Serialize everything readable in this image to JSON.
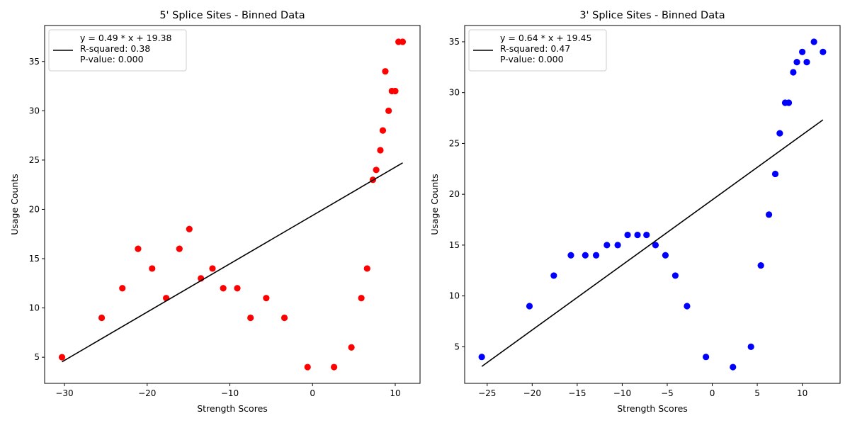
{
  "chart_data": [
    {
      "type": "scatter",
      "title": "5' Splice Sites - Binned Data",
      "xlabel": "Strength Scores",
      "ylabel": "Usage Counts",
      "xlim": [
        -32.4,
        13.0
      ],
      "ylim": [
        2.35,
        38.65
      ],
      "xticks": [
        -30,
        -20,
        -10,
        0,
        10
      ],
      "yticks": [
        5,
        10,
        15,
        20,
        25,
        30,
        35
      ],
      "grid": false,
      "legend_position": "top-left",
      "marker_color": "#ff0000",
      "line_color": "#000000",
      "legend": [
        "y = 0.49 * x + 19.38",
        "R-squared: 0.38",
        "P-value: 0.000"
      ],
      "fit": {
        "slope": 0.49,
        "intercept": 19.38,
        "x_range": [
          -30.3,
          10.9
        ]
      },
      "points": [
        [
          -30.3,
          5
        ],
        [
          -25.5,
          9
        ],
        [
          -23.0,
          12
        ],
        [
          -21.1,
          16
        ],
        [
          -19.4,
          14
        ],
        [
          -17.7,
          11
        ],
        [
          -16.1,
          16
        ],
        [
          -14.9,
          18
        ],
        [
          -13.5,
          13
        ],
        [
          -12.1,
          14
        ],
        [
          -10.8,
          12
        ],
        [
          -9.1,
          12
        ],
        [
          -7.5,
          9
        ],
        [
          -5.6,
          11
        ],
        [
          -3.4,
          9
        ],
        [
          -0.6,
          4
        ],
        [
          2.6,
          4
        ],
        [
          4.7,
          6
        ],
        [
          5.9,
          11
        ],
        [
          6.6,
          14
        ],
        [
          7.3,
          23
        ],
        [
          7.7,
          24
        ],
        [
          8.2,
          26
        ],
        [
          8.5,
          28
        ],
        [
          8.8,
          34
        ],
        [
          9.2,
          30
        ],
        [
          9.6,
          32
        ],
        [
          10.0,
          32
        ],
        [
          10.4,
          37
        ],
        [
          10.9,
          37
        ]
      ]
    },
    {
      "type": "scatter",
      "title": "3' Splice Sites - Binned Data",
      "xlabel": "Strength Scores",
      "ylabel": "Usage Counts",
      "xlim": [
        -27.5,
        14.2
      ],
      "ylim": [
        1.4,
        36.6
      ],
      "xticks": [
        -25,
        -20,
        -15,
        -10,
        -5,
        0,
        5,
        10
      ],
      "yticks": [
        5,
        10,
        15,
        20,
        25,
        30,
        35
      ],
      "grid": false,
      "legend_position": "top-left",
      "marker_color": "#0000ff",
      "line_color": "#000000",
      "legend": [
        "y = 0.64 * x + 19.45",
        "R-squared: 0.47",
        "P-value: 0.000"
      ],
      "fit": {
        "slope": 0.64,
        "intercept": 19.45,
        "x_range": [
          -25.6,
          12.3
        ]
      },
      "points": [
        [
          -25.6,
          4
        ],
        [
          -20.3,
          9
        ],
        [
          -17.6,
          12
        ],
        [
          -15.7,
          14
        ],
        [
          -14.1,
          14
        ],
        [
          -12.9,
          14
        ],
        [
          -11.7,
          15
        ],
        [
          -10.5,
          15
        ],
        [
          -9.4,
          16
        ],
        [
          -8.3,
          16
        ],
        [
          -7.3,
          16
        ],
        [
          -6.3,
          15
        ],
        [
          -5.2,
          14
        ],
        [
          -4.1,
          12
        ],
        [
          -2.8,
          9
        ],
        [
          -0.7,
          4
        ],
        [
          2.3,
          3
        ],
        [
          4.3,
          5
        ],
        [
          5.4,
          13
        ],
        [
          6.3,
          18
        ],
        [
          7.0,
          22
        ],
        [
          7.5,
          26
        ],
        [
          8.1,
          29
        ],
        [
          8.5,
          29
        ],
        [
          9.0,
          32
        ],
        [
          9.4,
          33
        ],
        [
          10.0,
          34
        ],
        [
          10.5,
          33
        ],
        [
          11.3,
          35
        ],
        [
          12.3,
          34
        ]
      ]
    }
  ]
}
